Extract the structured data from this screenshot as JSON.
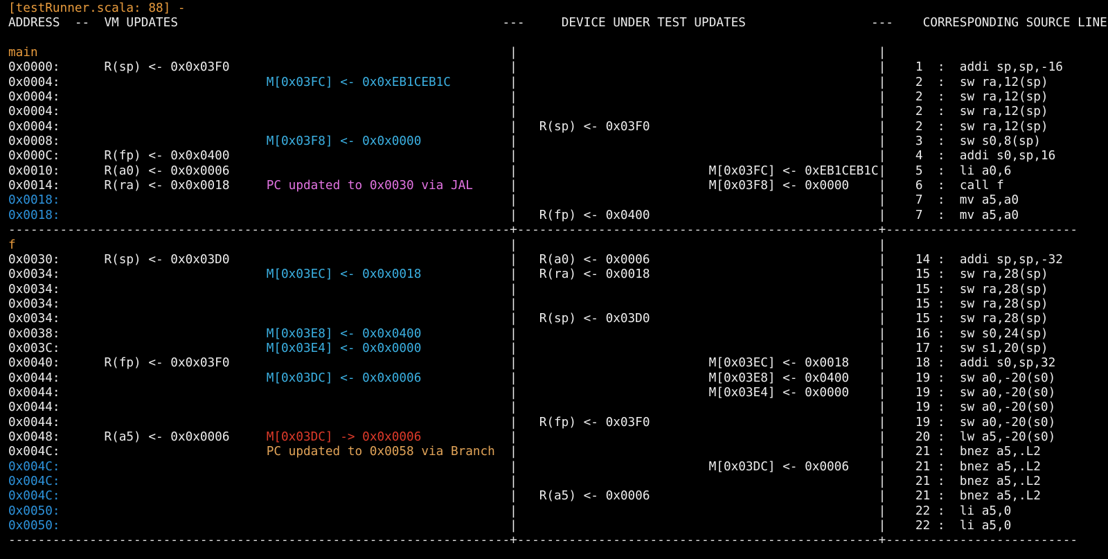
{
  "colors": {
    "background": "#000000",
    "foreground": "#EDEDED",
    "orange": "#E89B3D",
    "amber": "#E2A458",
    "cyan": "#3BB0E2",
    "blue": "#2D93DC",
    "magenta": "#E273E2",
    "red": "#DE3A2A",
    "separator": "#DCDCDC"
  },
  "separator": {
    "dash": "-",
    "cross": "+",
    "counts": [
      68,
      49,
      26
    ]
  },
  "rows": [
    {
      "s": [
        [
          0,
          "[testRunner.scala: 88] -",
          "log"
        ]
      ]
    },
    {
      "s": [
        [
          0,
          "ADDRESS",
          "hdr"
        ],
        [
          9,
          "--",
          "hdr"
        ],
        [
          13,
          "VM UPDATES",
          "hdr"
        ],
        [
          67,
          "---",
          "hdr"
        ],
        [
          75,
          "DEVICE UNDER TEST UPDATES",
          "hdr"
        ],
        [
          117,
          "---",
          "hdr"
        ],
        [
          124,
          "CORRESPONDING SOURCE LINE",
          "hdr"
        ]
      ]
    },
    {
      "s": []
    },
    {
      "s": [
        [
          0,
          "main",
          "label"
        ],
        [
          68,
          "|",
          "pipe"
        ],
        [
          118,
          "|",
          "pipe"
        ]
      ]
    },
    {
      "s": [
        [
          0,
          "0x0000:",
          "addr"
        ],
        [
          13,
          "R(sp) <- 0x0x03F0",
          "vmreg"
        ],
        [
          68,
          "|",
          "pipe"
        ],
        [
          118,
          "|",
          "pipe"
        ],
        [
          123,
          "1",
          "num"
        ],
        [
          126,
          ":",
          "colon"
        ],
        [
          129,
          "addi sp,sp,-16",
          "instr"
        ]
      ]
    },
    {
      "s": [
        [
          0,
          "0x0004:",
          "addr"
        ],
        [
          35,
          "M[0x03FC] <- 0x0xEB1CEB1C",
          "vmmem"
        ],
        [
          68,
          "|",
          "pipe"
        ],
        [
          118,
          "|",
          "pipe"
        ],
        [
          123,
          "2",
          "num"
        ],
        [
          126,
          ":",
          "colon"
        ],
        [
          129,
          "sw ra,12(sp)",
          "instr"
        ]
      ]
    },
    {
      "s": [
        [
          0,
          "0x0004:",
          "addr"
        ],
        [
          68,
          "|",
          "pipe"
        ],
        [
          118,
          "|",
          "pipe"
        ],
        [
          123,
          "2",
          "num"
        ],
        [
          126,
          ":",
          "colon"
        ],
        [
          129,
          "sw ra,12(sp)",
          "instr"
        ]
      ]
    },
    {
      "s": [
        [
          0,
          "0x0004:",
          "addr"
        ],
        [
          68,
          "|",
          "pipe"
        ],
        [
          118,
          "|",
          "pipe"
        ],
        [
          123,
          "2",
          "num"
        ],
        [
          126,
          ":",
          "colon"
        ],
        [
          129,
          "sw ra,12(sp)",
          "instr"
        ]
      ]
    },
    {
      "s": [
        [
          0,
          "0x0004:",
          "addr"
        ],
        [
          68,
          "|",
          "pipe"
        ],
        [
          72,
          "R(sp) <- 0x03F0",
          "dutreg"
        ],
        [
          118,
          "|",
          "pipe"
        ],
        [
          123,
          "2",
          "num"
        ],
        [
          126,
          ":",
          "colon"
        ],
        [
          129,
          "sw ra,12(sp)",
          "instr"
        ]
      ]
    },
    {
      "s": [
        [
          0,
          "0x0008:",
          "addr"
        ],
        [
          35,
          "M[0x03F8] <- 0x0x0000",
          "vmmem"
        ],
        [
          68,
          "|",
          "pipe"
        ],
        [
          118,
          "|",
          "pipe"
        ],
        [
          123,
          "3",
          "num"
        ],
        [
          126,
          ":",
          "colon"
        ],
        [
          129,
          "sw s0,8(sp)",
          "instr"
        ]
      ]
    },
    {
      "s": [
        [
          0,
          "0x000C:",
          "addr"
        ],
        [
          13,
          "R(fp) <- 0x0x0400",
          "vmreg"
        ],
        [
          68,
          "|",
          "pipe"
        ],
        [
          118,
          "|",
          "pipe"
        ],
        [
          123,
          "4",
          "num"
        ],
        [
          126,
          ":",
          "colon"
        ],
        [
          129,
          "addi s0,sp,16",
          "instr"
        ]
      ]
    },
    {
      "s": [
        [
          0,
          "0x0010:",
          "addr"
        ],
        [
          13,
          "R(a0) <- 0x0x0006",
          "vmreg"
        ],
        [
          68,
          "|",
          "pipe"
        ],
        [
          95,
          "M[0x03FC] <- 0xEB1CEB1C",
          "dutmem"
        ],
        [
          118,
          "|",
          "pipe"
        ],
        [
          123,
          "5",
          "num"
        ],
        [
          126,
          ":",
          "colon"
        ],
        [
          129,
          "li a0,6",
          "instr"
        ]
      ]
    },
    {
      "s": [
        [
          0,
          "0x0014:",
          "addr"
        ],
        [
          13,
          "R(ra) <- 0x0x0018",
          "vmreg"
        ],
        [
          35,
          "PC updated to 0x0030 via JAL",
          "jal"
        ],
        [
          68,
          "|",
          "pipe"
        ],
        [
          95,
          "M[0x03F8] <- 0x0000",
          "dutmem"
        ],
        [
          118,
          "|",
          "pipe"
        ],
        [
          123,
          "6",
          "num"
        ],
        [
          126,
          ":",
          "colon"
        ],
        [
          129,
          "call f",
          "instr"
        ]
      ]
    },
    {
      "s": [
        [
          0,
          "0x0018:",
          "addrb"
        ],
        [
          68,
          "|",
          "pipe"
        ],
        [
          118,
          "|",
          "pipe"
        ],
        [
          123,
          "7",
          "num"
        ],
        [
          126,
          ":",
          "colon"
        ],
        [
          129,
          "mv a5,a0",
          "instr"
        ]
      ]
    },
    {
      "s": [
        [
          0,
          "0x0018:",
          "addrb"
        ],
        [
          68,
          "|",
          "pipe"
        ],
        [
          72,
          "R(fp) <- 0x0400",
          "dutreg"
        ],
        [
          118,
          "|",
          "pipe"
        ],
        [
          123,
          "7",
          "num"
        ],
        [
          126,
          ":",
          "colon"
        ],
        [
          129,
          "mv a5,a0",
          "instr"
        ]
      ]
    },
    {
      "sep": true
    },
    {
      "s": [
        [
          0,
          "f",
          "label"
        ],
        [
          68,
          "|",
          "pipe"
        ],
        [
          118,
          "|",
          "pipe"
        ]
      ]
    },
    {
      "s": [
        [
          0,
          "0x0030:",
          "addr"
        ],
        [
          13,
          "R(sp) <- 0x0x03D0",
          "vmreg"
        ],
        [
          68,
          "|",
          "pipe"
        ],
        [
          72,
          "R(a0) <- 0x0006",
          "dutreg"
        ],
        [
          118,
          "|",
          "pipe"
        ],
        [
          123,
          "14",
          "num"
        ],
        [
          126,
          ":",
          "colon"
        ],
        [
          129,
          "addi sp,sp,-32",
          "instr"
        ]
      ]
    },
    {
      "s": [
        [
          0,
          "0x0034:",
          "addr"
        ],
        [
          35,
          "M[0x03EC] <- 0x0x0018",
          "vmmem"
        ],
        [
          68,
          "|",
          "pipe"
        ],
        [
          72,
          "R(ra) <- 0x0018",
          "dutreg"
        ],
        [
          118,
          "|",
          "pipe"
        ],
        [
          123,
          "15",
          "num"
        ],
        [
          126,
          ":",
          "colon"
        ],
        [
          129,
          "sw ra,28(sp)",
          "instr"
        ]
      ]
    },
    {
      "s": [
        [
          0,
          "0x0034:",
          "addr"
        ],
        [
          68,
          "|",
          "pipe"
        ],
        [
          118,
          "|",
          "pipe"
        ],
        [
          123,
          "15",
          "num"
        ],
        [
          126,
          ":",
          "colon"
        ],
        [
          129,
          "sw ra,28(sp)",
          "instr"
        ]
      ]
    },
    {
      "s": [
        [
          0,
          "0x0034:",
          "addr"
        ],
        [
          68,
          "|",
          "pipe"
        ],
        [
          118,
          "|",
          "pipe"
        ],
        [
          123,
          "15",
          "num"
        ],
        [
          126,
          ":",
          "colon"
        ],
        [
          129,
          "sw ra,28(sp)",
          "instr"
        ]
      ]
    },
    {
      "s": [
        [
          0,
          "0x0034:",
          "addr"
        ],
        [
          68,
          "|",
          "pipe"
        ],
        [
          72,
          "R(sp) <- 0x03D0",
          "dutreg"
        ],
        [
          118,
          "|",
          "pipe"
        ],
        [
          123,
          "15",
          "num"
        ],
        [
          126,
          ":",
          "colon"
        ],
        [
          129,
          "sw ra,28(sp)",
          "instr"
        ]
      ]
    },
    {
      "s": [
        [
          0,
          "0x0038:",
          "addr"
        ],
        [
          35,
          "M[0x03E8] <- 0x0x0400",
          "vmmem"
        ],
        [
          68,
          "|",
          "pipe"
        ],
        [
          118,
          "|",
          "pipe"
        ],
        [
          123,
          "16",
          "num"
        ],
        [
          126,
          ":",
          "colon"
        ],
        [
          129,
          "sw s0,24(sp)",
          "instr"
        ]
      ]
    },
    {
      "s": [
        [
          0,
          "0x003C:",
          "addr"
        ],
        [
          35,
          "M[0x03E4] <- 0x0x0000",
          "vmmem"
        ],
        [
          68,
          "|",
          "pipe"
        ],
        [
          118,
          "|",
          "pipe"
        ],
        [
          123,
          "17",
          "num"
        ],
        [
          126,
          ":",
          "colon"
        ],
        [
          129,
          "sw s1,20(sp)",
          "instr"
        ]
      ]
    },
    {
      "s": [
        [
          0,
          "0x0040:",
          "addr"
        ],
        [
          13,
          "R(fp) <- 0x0x03F0",
          "vmreg"
        ],
        [
          68,
          "|",
          "pipe"
        ],
        [
          95,
          "M[0x03EC] <- 0x0018",
          "dutmem"
        ],
        [
          118,
          "|",
          "pipe"
        ],
        [
          123,
          "18",
          "num"
        ],
        [
          126,
          ":",
          "colon"
        ],
        [
          129,
          "addi s0,sp,32",
          "instr"
        ]
      ]
    },
    {
      "s": [
        [
          0,
          "0x0044:",
          "addr"
        ],
        [
          35,
          "M[0x03DC] <- 0x0x0006",
          "vmmem"
        ],
        [
          68,
          "|",
          "pipe"
        ],
        [
          95,
          "M[0x03E8] <- 0x0400",
          "dutmem"
        ],
        [
          118,
          "|",
          "pipe"
        ],
        [
          123,
          "19",
          "num"
        ],
        [
          126,
          ":",
          "colon"
        ],
        [
          129,
          "sw a0,-20(s0)",
          "instr"
        ]
      ]
    },
    {
      "s": [
        [
          0,
          "0x0044:",
          "addr"
        ],
        [
          68,
          "|",
          "pipe"
        ],
        [
          95,
          "M[0x03E4] <- 0x0000",
          "dutmem"
        ],
        [
          118,
          "|",
          "pipe"
        ],
        [
          123,
          "19",
          "num"
        ],
        [
          126,
          ":",
          "colon"
        ],
        [
          129,
          "sw a0,-20(s0)",
          "instr"
        ]
      ]
    },
    {
      "s": [
        [
          0,
          "0x0044:",
          "addr"
        ],
        [
          68,
          "|",
          "pipe"
        ],
        [
          118,
          "|",
          "pipe"
        ],
        [
          123,
          "19",
          "num"
        ],
        [
          126,
          ":",
          "colon"
        ],
        [
          129,
          "sw a0,-20(s0)",
          "instr"
        ]
      ]
    },
    {
      "s": [
        [
          0,
          "0x0044:",
          "addr"
        ],
        [
          68,
          "|",
          "pipe"
        ],
        [
          72,
          "R(fp) <- 0x03F0",
          "dutreg"
        ],
        [
          118,
          "|",
          "pipe"
        ],
        [
          123,
          "19",
          "num"
        ],
        [
          126,
          ":",
          "colon"
        ],
        [
          129,
          "sw a0,-20(s0)",
          "instr"
        ]
      ]
    },
    {
      "s": [
        [
          0,
          "0x0048:",
          "addr"
        ],
        [
          13,
          "R(a5) <- 0x0x0006",
          "vmreg"
        ],
        [
          35,
          "M[0x03DC] -> 0x0x0006",
          "memrd"
        ],
        [
          68,
          "|",
          "pipe"
        ],
        [
          118,
          "|",
          "pipe"
        ],
        [
          123,
          "20",
          "num"
        ],
        [
          126,
          ":",
          "colon"
        ],
        [
          129,
          "lw a5,-20(s0)",
          "instr"
        ]
      ]
    },
    {
      "s": [
        [
          0,
          "0x004C:",
          "addr"
        ],
        [
          35,
          "PC updated to 0x0058 via Branch",
          "branch"
        ],
        [
          68,
          "|",
          "pipe"
        ],
        [
          118,
          "|",
          "pipe"
        ],
        [
          123,
          "21",
          "num"
        ],
        [
          126,
          ":",
          "colon"
        ],
        [
          129,
          "bnez a5,.L2",
          "instr"
        ]
      ]
    },
    {
      "s": [
        [
          0,
          "0x004C:",
          "addrb"
        ],
        [
          68,
          "|",
          "pipe"
        ],
        [
          95,
          "M[0x03DC] <- 0x0006",
          "dutmem"
        ],
        [
          118,
          "|",
          "pipe"
        ],
        [
          123,
          "21",
          "num"
        ],
        [
          126,
          ":",
          "colon"
        ],
        [
          129,
          "bnez a5,.L2",
          "instr"
        ]
      ]
    },
    {
      "s": [
        [
          0,
          "0x004C:",
          "addrb"
        ],
        [
          68,
          "|",
          "pipe"
        ],
        [
          118,
          "|",
          "pipe"
        ],
        [
          123,
          "21",
          "num"
        ],
        [
          126,
          ":",
          "colon"
        ],
        [
          129,
          "bnez a5,.L2",
          "instr"
        ]
      ]
    },
    {
      "s": [
        [
          0,
          "0x004C:",
          "addrb"
        ],
        [
          68,
          "|",
          "pipe"
        ],
        [
          72,
          "R(a5) <- 0x0006",
          "dutreg"
        ],
        [
          118,
          "|",
          "pipe"
        ],
        [
          123,
          "21",
          "num"
        ],
        [
          126,
          ":",
          "colon"
        ],
        [
          129,
          "bnez a5,.L2",
          "instr"
        ]
      ]
    },
    {
      "s": [
        [
          0,
          "0x0050:",
          "addrb"
        ],
        [
          68,
          "|",
          "pipe"
        ],
        [
          118,
          "|",
          "pipe"
        ],
        [
          123,
          "22",
          "num"
        ],
        [
          126,
          ":",
          "colon"
        ],
        [
          129,
          "li a5,0",
          "instr"
        ]
      ]
    },
    {
      "s": [
        [
          0,
          "0x0050:",
          "addrb"
        ],
        [
          68,
          "|",
          "pipe"
        ],
        [
          118,
          "|",
          "pipe"
        ],
        [
          123,
          "22",
          "num"
        ],
        [
          126,
          ":",
          "colon"
        ],
        [
          129,
          "li a5,0",
          "instr"
        ]
      ]
    },
    {
      "sep": true
    }
  ]
}
